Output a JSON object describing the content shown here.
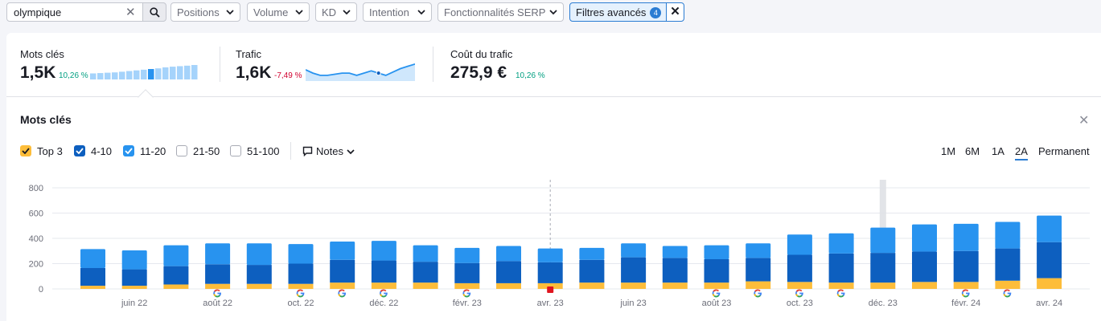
{
  "search": {
    "value": "olympique"
  },
  "filters": [
    {
      "label": "Positions",
      "name": "filter-positions"
    },
    {
      "label": "Volume",
      "name": "filter-volume"
    },
    {
      "label": "KD",
      "name": "filter-kd"
    },
    {
      "label": "Intention",
      "name": "filter-intention"
    },
    {
      "label": "Fonctionnalités SERP",
      "name": "filter-serp"
    }
  ],
  "advanced_filter": {
    "label": "Filtres avancés",
    "count": "4"
  },
  "metrics": {
    "keywords": {
      "label": "Mots clés",
      "value": "1,5K",
      "delta": "10,26 %"
    },
    "traffic": {
      "label": "Trafic",
      "value": "1,6K",
      "delta": "-7,49 %"
    },
    "cost": {
      "label": "Coût du trafic",
      "value": "275,9 €",
      "delta": "10,26 %"
    }
  },
  "chart_panel": {
    "title": "Mots clés",
    "legend": [
      {
        "label": "Top 3",
        "checked": true,
        "color": "#ffbf2e"
      },
      {
        "label": "4-10",
        "checked": true,
        "color": "#0b63c4"
      },
      {
        "label": "11-20",
        "checked": true,
        "color": "#1c8ef0"
      },
      {
        "label": "21-50",
        "checked": false,
        "color": "#ffffff"
      },
      {
        "label": "51-100",
        "checked": false,
        "color": "#ffffff"
      }
    ],
    "notes_label": "Notes",
    "ranges": [
      "1M",
      "6M",
      "1A",
      "2A",
      "Permanent"
    ],
    "active_range": "2A"
  },
  "colors": {
    "top3": "#fdbd3a",
    "pos4_10": "#0d5fbf",
    "pos11_20": "#2893ef",
    "accent": "#2b7cd3",
    "google_markers": "multicolor G",
    "note_marker": "#e0151f"
  },
  "chart_data": {
    "type": "bar",
    "stacked": true,
    "categories": [
      "mai 22",
      "juin 22",
      "juil. 22",
      "août 22",
      "sept. 22",
      "oct. 22",
      "nov. 22",
      "déc. 22",
      "janv. 23",
      "févr. 23",
      "mars 23",
      "avr. 23",
      "mai 23",
      "juin 23",
      "juil. 23",
      "août 23",
      "sept. 23",
      "oct. 23",
      "nov. 23",
      "déc. 23",
      "janv. 24",
      "févr. 24",
      "mars 24",
      "avr. 24"
    ],
    "x_tick_labels": [
      "juin 22",
      "août 22",
      "oct. 22",
      "déc. 22",
      "févr. 23",
      "avr. 23",
      "juin 23",
      "août 23",
      "oct. 23",
      "déc. 23",
      "févr. 24",
      "avr. 24"
    ],
    "series": [
      {
        "name": "Top 3",
        "values": [
          25,
          25,
          35,
          40,
          40,
          40,
          50,
          50,
          50,
          45,
          45,
          45,
          50,
          50,
          50,
          50,
          60,
          55,
          50,
          50,
          55,
          55,
          65,
          85
        ]
      },
      {
        "name": "4-10",
        "values": [
          140,
          130,
          145,
          155,
          150,
          160,
          180,
          175,
          165,
          160,
          175,
          165,
          180,
          200,
          195,
          185,
          185,
          215,
          230,
          235,
          240,
          245,
          255,
          285
        ]
      },
      {
        "name": "11-20",
        "values": [
          150,
          150,
          165,
          165,
          170,
          155,
          145,
          155,
          130,
          120,
          120,
          110,
          95,
          110,
          95,
          110,
          115,
          160,
          160,
          200,
          215,
          215,
          210,
          210
        ]
      }
    ],
    "ylim": [
      0,
      800
    ],
    "yticks": [
      0,
      200,
      400,
      600,
      800
    ],
    "grid": true,
    "google_update_markers": [
      "août 22",
      "oct. 22",
      "nov. 22",
      "déc. 22",
      "févr. 23",
      "août 23",
      "sept. 23",
      "oct. 23",
      "nov. 23",
      "févr. 24",
      "mars 24"
    ],
    "note_marker": "avr. 23",
    "sparklines": {
      "keywords": [
        180,
        190,
        200,
        210,
        230,
        250,
        270,
        290,
        310,
        330,
        360,
        380,
        395,
        410,
        430
      ],
      "traffic": [
        1.55,
        1.52,
        1.5,
        1.5,
        1.51,
        1.52,
        1.52,
        1.5,
        1.52,
        1.54,
        1.52,
        1.5,
        1.53,
        1.56,
        1.58,
        1.6
      ]
    }
  }
}
